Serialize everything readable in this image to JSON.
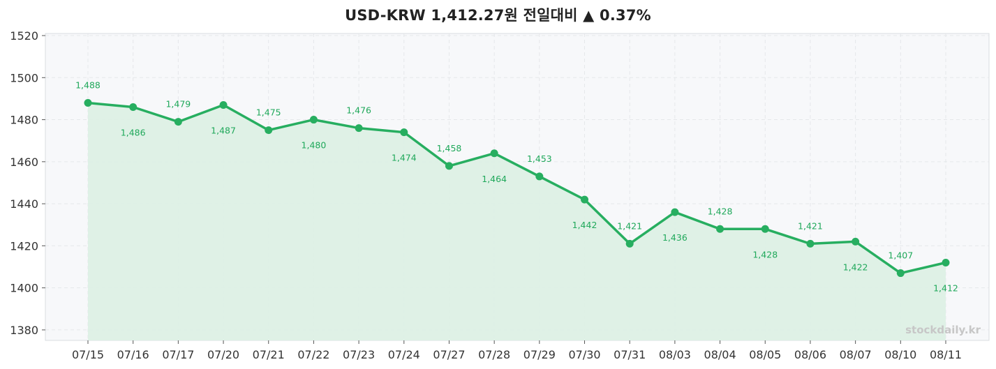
{
  "title": "USD-KRW  1,412.27원  전일대비 ▲ 0.37%",
  "watermark": "stockdaily.kr",
  "colors": {
    "line": "#27ae60",
    "fill": "#ddf0e5",
    "plot_bg": "#f7f8fa",
    "grid": "#e5e7ea",
    "label": "#1fa85a"
  },
  "chart_data": {
    "type": "line",
    "categories": [
      "07/15",
      "07/16",
      "07/17",
      "07/20",
      "07/21",
      "07/22",
      "07/23",
      "07/24",
      "07/27",
      "07/28",
      "07/29",
      "07/30",
      "07/31",
      "08/03",
      "08/04",
      "08/05",
      "08/06",
      "08/07",
      "08/10",
      "08/11"
    ],
    "values": [
      1488,
      1486,
      1479,
      1487,
      1475,
      1480,
      1476,
      1474,
      1458,
      1464,
      1453,
      1442,
      1421,
      1436,
      1428,
      1428,
      1421,
      1422,
      1407,
      1412
    ],
    "labels": [
      "1,488",
      "1,486",
      "1,479",
      "1,487",
      "1,475",
      "1,480",
      "1,476",
      "1,474",
      "1,458",
      "1,464",
      "1,453",
      "1,442",
      "1,421",
      "1,436",
      "1,428",
      "1,428",
      "1,421",
      "1,422",
      "1,407",
      "1,412"
    ],
    "label_position": [
      "above",
      "below",
      "above",
      "below",
      "above",
      "below",
      "above",
      "below",
      "above",
      "below",
      "above",
      "below",
      "above",
      "below",
      "above",
      "below",
      "above",
      "below",
      "above",
      "below"
    ],
    "ylim": [
      1375,
      1521
    ],
    "yticks": [
      1380,
      1400,
      1420,
      1440,
      1460,
      1480,
      1500,
      1520
    ],
    "grid": true,
    "area_fill": true
  }
}
